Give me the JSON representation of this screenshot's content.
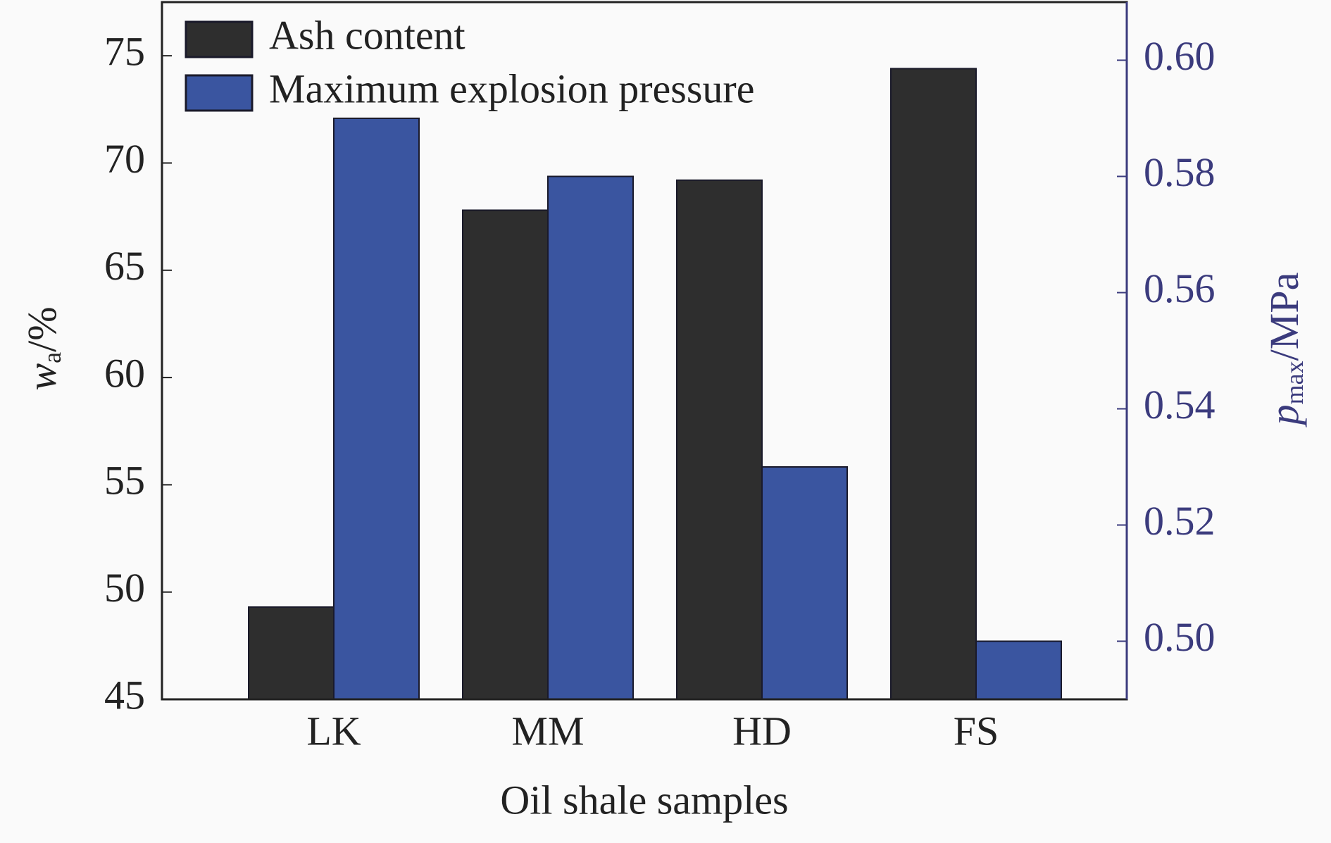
{
  "chart_data": {
    "type": "bar",
    "x_label": "Oil shale samples",
    "y_label": {
      "main": "w",
      "sub": "a",
      "rest": "/%"
    },
    "y2_label": {
      "main": "p",
      "sub": "max",
      "rest": "/MPa"
    },
    "categories": [
      "LK",
      "MM",
      "HD",
      "FS"
    ],
    "series": [
      {
        "name": "Ash content",
        "color": "#2e2e2e",
        "values": [
          49.3,
          67.8,
          69.2,
          74.4
        ]
      },
      {
        "name": "Maximum explosion pressure",
        "color": "#3a55a0",
        "axis": "y2",
        "values": [
          0.59,
          0.58,
          0.53,
          0.5
        ]
      }
    ],
    "ylim": [
      45,
      77.5
    ],
    "yticks": [
      45,
      50,
      55,
      60,
      65,
      70,
      75
    ],
    "y2lim": [
      0.49,
      0.61
    ],
    "y2ticks": [
      {
        "value": 0.5,
        "label": "0.50"
      },
      0.52,
      0.54,
      0.56,
      0.58,
      {
        "value": 0.6,
        "label": "0.60"
      }
    ],
    "y2_color": "#3b3b7d",
    "legend": "upper-left"
  }
}
